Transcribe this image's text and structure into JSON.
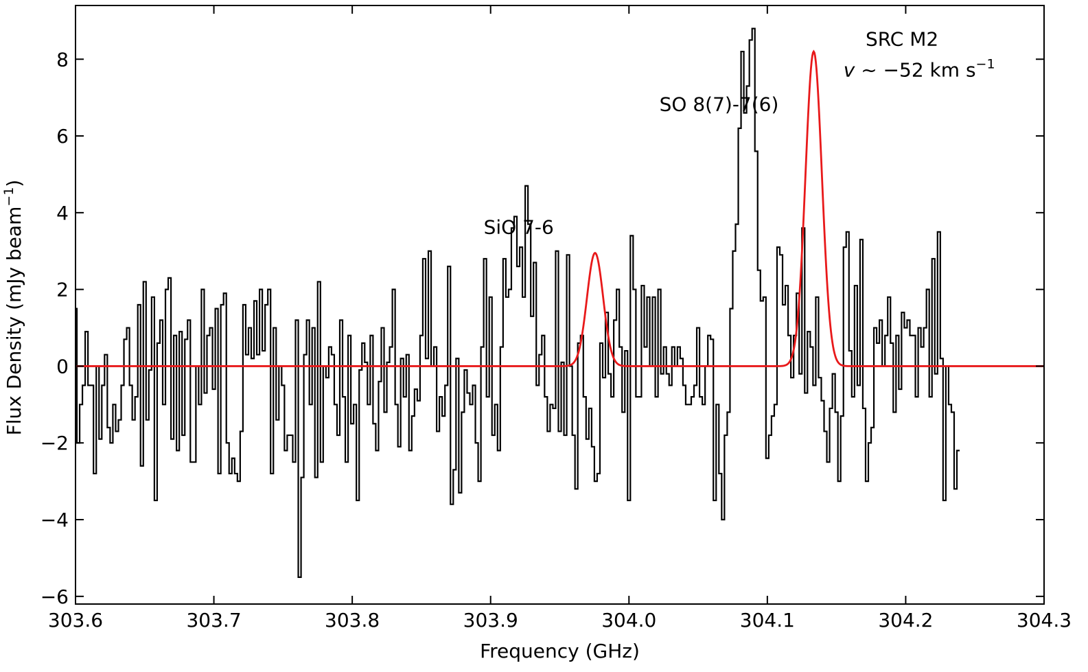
{
  "chart_data": {
    "type": "line",
    "title": "",
    "xlabel": "Frequency (GHz)",
    "ylabel_main": "Flux Density (mJy beam",
    "ylabel_exp": "−1",
    "ylabel_close": ")",
    "xlim": [
      303.6,
      304.3
    ],
    "ylim": [
      -6.2,
      9.4
    ],
    "xticks": [
      303.6,
      303.7,
      303.8,
      303.9,
      304.0,
      304.1,
      304.2,
      304.3
    ],
    "xtick_labels": [
      "303.6",
      "303.7",
      "303.8",
      "303.9",
      "304.0",
      "304.1",
      "304.2",
      "304.3"
    ],
    "yticks": [
      -6,
      -4,
      -2,
      0,
      2,
      4,
      6,
      8
    ],
    "ytick_labels": [
      "−6",
      "−4",
      "−2",
      "0",
      "2",
      "4",
      "6",
      "8"
    ],
    "grid": false,
    "series": [
      {
        "style": "steps-mid",
        "color": "#000000",
        "x_start": 303.6,
        "x_step": 0.002,
        "values": [
          1.5,
          -2.0,
          -1.0,
          -0.5,
          0.9,
          -0.5,
          -0.5,
          -2.8,
          0.0,
          -1.9,
          -0.5,
          0.3,
          -1.6,
          -2.0,
          -1.0,
          -1.7,
          -1.4,
          -0.5,
          0.7,
          1.0,
          -0.5,
          -1.4,
          -0.8,
          1.6,
          -2.6,
          2.2,
          -1.4,
          -0.1,
          1.8,
          -3.5,
          0.6,
          1.2,
          -1.0,
          2.0,
          2.3,
          -1.9,
          0.8,
          -2.2,
          0.9,
          -1.8,
          0.7,
          1.2,
          -2.5,
          -2.5,
          0.0,
          -1.0,
          2.0,
          -0.7,
          0.8,
          1.0,
          -0.6,
          1.5,
          -2.8,
          1.6,
          1.9,
          -2.0,
          -2.8,
          -2.4,
          -2.8,
          -3.0,
          -1.7,
          1.6,
          0.3,
          1.0,
          0.2,
          1.7,
          0.3,
          2.0,
          0.4,
          1.6,
          2.0,
          -2.8,
          1.0,
          -1.4,
          0.0,
          -0.5,
          -2.2,
          -1.8,
          -1.8,
          -2.5,
          1.2,
          -5.5,
          -2.9,
          0.3,
          1.2,
          -1.0,
          1.0,
          -2.9,
          2.2,
          -2.5,
          0.0,
          -0.3,
          0.5,
          0.3,
          -1.0,
          -1.8,
          1.2,
          -0.8,
          -2.5,
          0.8,
          -1.5,
          -1.0,
          -3.5,
          -0.1,
          0.6,
          0.1,
          -1.0,
          0.8,
          -1.5,
          -2.2,
          -0.4,
          1.0,
          -1.2,
          0.1,
          0.5,
          2.0,
          -1.0,
          -2.1,
          0.2,
          -0.8,
          0.3,
          -2.2,
          -1.3,
          -0.6,
          -0.9,
          0.8,
          2.8,
          0.2,
          3.0,
          0.0,
          0.5,
          -1.7,
          -0.8,
          -1.3,
          -0.5,
          2.6,
          -3.6,
          -2.7,
          0.2,
          -3.3,
          -1.2,
          -0.1,
          -0.7,
          -1.0,
          -0.5,
          -2.0,
          -3.0,
          0.5,
          2.8,
          -0.8,
          1.8,
          -1.8,
          -1.0,
          -2.2,
          0.5,
          2.8,
          1.8,
          2.0,
          3.6,
          3.9,
          2.6,
          3.1,
          1.8,
          4.7,
          3.7,
          1.3,
          2.7,
          -0.5,
          0.3,
          0.8,
          -0.8,
          -1.7,
          -1.0,
          -1.1,
          3.0,
          -1.7,
          0.1,
          -1.8,
          2.9,
          0.0,
          -1.8,
          -3.2,
          0.6,
          0.8,
          -0.8,
          -1.9,
          -1.1,
          -2.1,
          -3.0,
          -2.8,
          0.6,
          -0.3,
          1.4,
          -0.2,
          -0.8,
          1.2,
          2.0,
          0.5,
          -1.2,
          0.4,
          -3.5,
          3.4,
          2.0,
          -0.8,
          -0.8,
          2.1,
          0.5,
          1.8,
          0.0,
          1.8,
          -0.8,
          2.0,
          -0.2,
          0.5,
          -0.2,
          -0.5,
          0.5,
          0.0,
          0.5,
          0.2,
          -0.5,
          -1.0,
          -1.0,
          -0.8,
          -0.5,
          1.0,
          -0.8,
          -1.0,
          0.0,
          0.8,
          0.7,
          -3.5,
          -1.0,
          -2.8,
          -4.0,
          -1.8,
          -1.2,
          1.5,
          3.0,
          3.7,
          6.2,
          8.2,
          6.6,
          7.3,
          8.5,
          8.8,
          5.6,
          2.5,
          1.7,
          1.8,
          -2.4,
          -1.8,
          -1.3,
          -1.0,
          3.1,
          2.9,
          1.6,
          2.1,
          0.8,
          -0.3,
          0.8,
          1.9,
          -0.2,
          3.6,
          -0.7,
          0.9,
          0.5,
          -0.5,
          1.8,
          -0.3,
          -0.9,
          -1.7,
          -2.5,
          -1.1,
          -0.2,
          -1.2,
          -3.0,
          -1.3,
          3.1,
          3.5,
          0.4,
          -0.8,
          2.1,
          -0.5,
          3.3,
          -1.1,
          -3.0,
          -2.0,
          -1.6,
          1.0,
          0.6,
          1.2,
          0.0,
          0.8,
          1.8,
          0.6,
          -1.2,
          0.8,
          -0.6,
          1.4,
          1.0,
          1.2,
          0.8,
          0.8,
          -0.8,
          1.0,
          0.5,
          1.0,
          2.0,
          -0.8,
          2.8,
          -0.2,
          3.5,
          0.2,
          -3.5,
          0.0,
          -1.0,
          -1.2,
          -3.2,
          -2.2
        ]
      },
      {
        "style": "gaussian",
        "color": "#e8191a",
        "components": [
          {
            "label": "SiO 7-6",
            "amp": 2.95,
            "center": 303.9755,
            "sigma": 0.00585
          },
          {
            "label": "SO 8(7)-7(6)",
            "amp": 8.2,
            "center": 304.1335,
            "sigma": 0.00595
          }
        ]
      }
    ],
    "annotations": [
      {
        "text": "SiO 7-6",
        "x": 303.895,
        "y": 3.45
      },
      {
        "text": "SO 8(7)-7(6)",
        "x": 304.022,
        "y": 6.65
      },
      {
        "text": "SRC M2",
        "x": 304.171,
        "y": 8.35
      }
    ],
    "velocity_label": {
      "var": "v",
      "text": " ~ −52 km s",
      "exp": "−1",
      "x": 304.155,
      "y": 7.55
    }
  }
}
